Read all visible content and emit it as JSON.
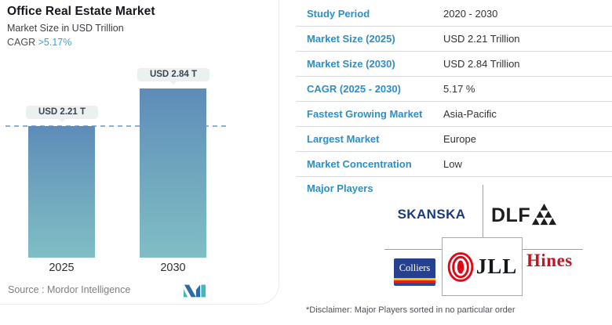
{
  "card": {
    "title": "Office Real Estate Market",
    "subtitle": "Market Size in USD Trillion",
    "cagr_label": "CAGR ",
    "cagr_value": ">5.17%",
    "source": "Source :  Mordor Intelligence"
  },
  "chart_data": {
    "type": "bar",
    "categories": [
      "2025",
      "2030"
    ],
    "values": [
      2.21,
      2.84
    ],
    "bar_labels": [
      "USD 2.21 T",
      "USD 2.84 T"
    ],
    "title": "Office Real Estate Market",
    "ylabel": "Market Size in USD Trillion",
    "ylim": [
      0,
      2.84
    ],
    "reference_line": 2.21,
    "grid": false,
    "legend": false
  },
  "table": {
    "rows": [
      {
        "label": "Study Period",
        "value": "2020 - 2030"
      },
      {
        "label": "Market Size (2025)",
        "value": "USD 2.21 Trillion"
      },
      {
        "label": "Market Size (2030)",
        "value": "USD 2.84 Trillion"
      },
      {
        "label": "CAGR (2025 - 2030)",
        "value": "5.17 %"
      },
      {
        "label": "Fastest Growing Market",
        "value": "Asia-Pacific"
      },
      {
        "label": "Largest Market",
        "value": "Europe"
      },
      {
        "label": "Market Concentration",
        "value": "Low"
      }
    ]
  },
  "major_players": {
    "label": "Major Players",
    "companies": [
      "SKANSKA",
      "DLF",
      "Colliers",
      "JLL",
      "Hines"
    ],
    "disclaimer": "*Disclaimer: Major Players sorted in no particular order"
  },
  "colors": {
    "accent_blue": "#2b8fc9",
    "cagr_blue": "#3aa3d2",
    "bar_gradient_top": "#5d8cb8",
    "bar_gradient_bottom": "#80bec5",
    "dashed_line": "#8cb0da",
    "skanska_blue": "#1b3a7d",
    "dlf_black": "#1d1d1d",
    "jll_red": "#e30613",
    "colliers_blue": "#25418e",
    "hines_red": "#c01823",
    "mordor_navy": "#2b6ca3",
    "mordor_teal": "#44b7ba"
  }
}
